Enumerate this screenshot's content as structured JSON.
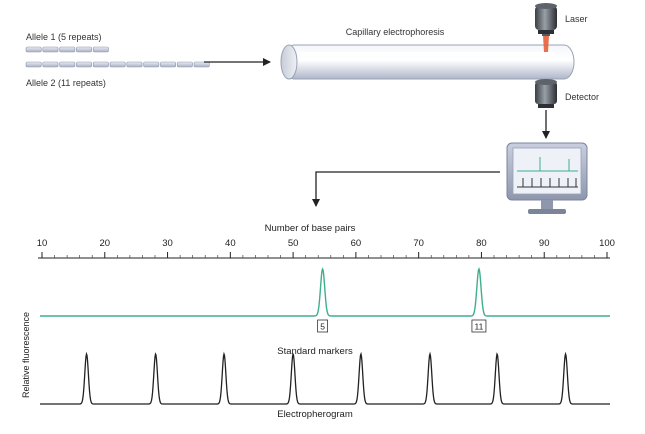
{
  "diagram": {
    "allele1_label": "Allele 1 (5 repeats)",
    "allele2_label": "Allele 2 (11 repeats)",
    "allele1_repeats": 5,
    "allele2_repeats": 11,
    "capillary_label": "Capillary electrophoresis",
    "laser_label": "Laser",
    "detector_label": "Detector"
  },
  "chart_data": {
    "type": "line",
    "axis_title": "Number of base pairs",
    "ylabel": "Relative fluorescence",
    "xlabel": "Electropherogram",
    "xlim": [
      7,
      104
    ],
    "ticks": [
      10,
      20,
      30,
      40,
      50,
      60,
      70,
      80,
      90,
      100
    ],
    "tick_labels": [
      "10",
      "20",
      "30",
      "40",
      "50",
      "60",
      "70",
      "80",
      "90",
      "100"
    ],
    "series": [
      {
        "color": "#3fae8e",
        "peaks": [
          {
            "x": 54.7,
            "label": "5"
          },
          {
            "x": 79.6,
            "label": "11"
          }
        ]
      },
      {
        "name": "Standard markers",
        "color": "#222222",
        "peaks": [
          {
            "x": 17.1
          },
          {
            "x": 28.1
          },
          {
            "x": 39.0
          },
          {
            "x": 50.0
          },
          {
            "x": 60.8
          },
          {
            "x": 71.8
          },
          {
            "x": 82.5
          },
          {
            "x": 93.4
          }
        ]
      }
    ]
  },
  "colors": {
    "sample_trace": "#3fae8e",
    "marker_trace": "#222222",
    "laser_beam": "#e8603a"
  },
  "icons": {
    "laser": "laser-device-icon",
    "detector": "detector-device-icon",
    "monitor": "monitor-icon"
  }
}
